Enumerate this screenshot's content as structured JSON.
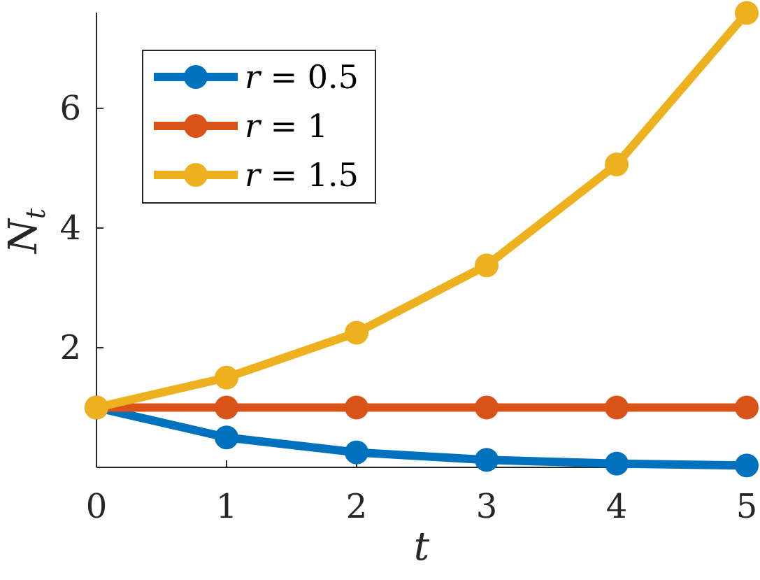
{
  "chart_data": {
    "type": "line",
    "x": [
      0,
      1,
      2,
      3,
      4,
      5
    ],
    "xlabel": "t",
    "ylabel": "N",
    "ylabel_subscript": "t",
    "xlim": [
      0,
      5
    ],
    "ylim": [
      0,
      7.6
    ],
    "xticks": [
      0,
      1,
      2,
      3,
      4,
      5
    ],
    "yticks": [
      2,
      4,
      6
    ],
    "grid": false,
    "legend_position": "top-left",
    "series": [
      {
        "name": "r = 0.5",
        "var": "r",
        "value": "0.5",
        "color": "#0072BD",
        "values": [
          1,
          0.5,
          0.25,
          0.125,
          0.0625,
          0.03125
        ]
      },
      {
        "name": "r = 1",
        "var": "r",
        "value": "1",
        "color": "#D95319",
        "values": [
          1,
          1,
          1,
          1,
          1,
          1
        ]
      },
      {
        "name": "r = 1.5",
        "var": "r",
        "value": "1.5",
        "color": "#EDB120",
        "values": [
          1,
          1.5,
          2.25,
          3.375,
          5.0625,
          7.59375
        ]
      }
    ]
  }
}
